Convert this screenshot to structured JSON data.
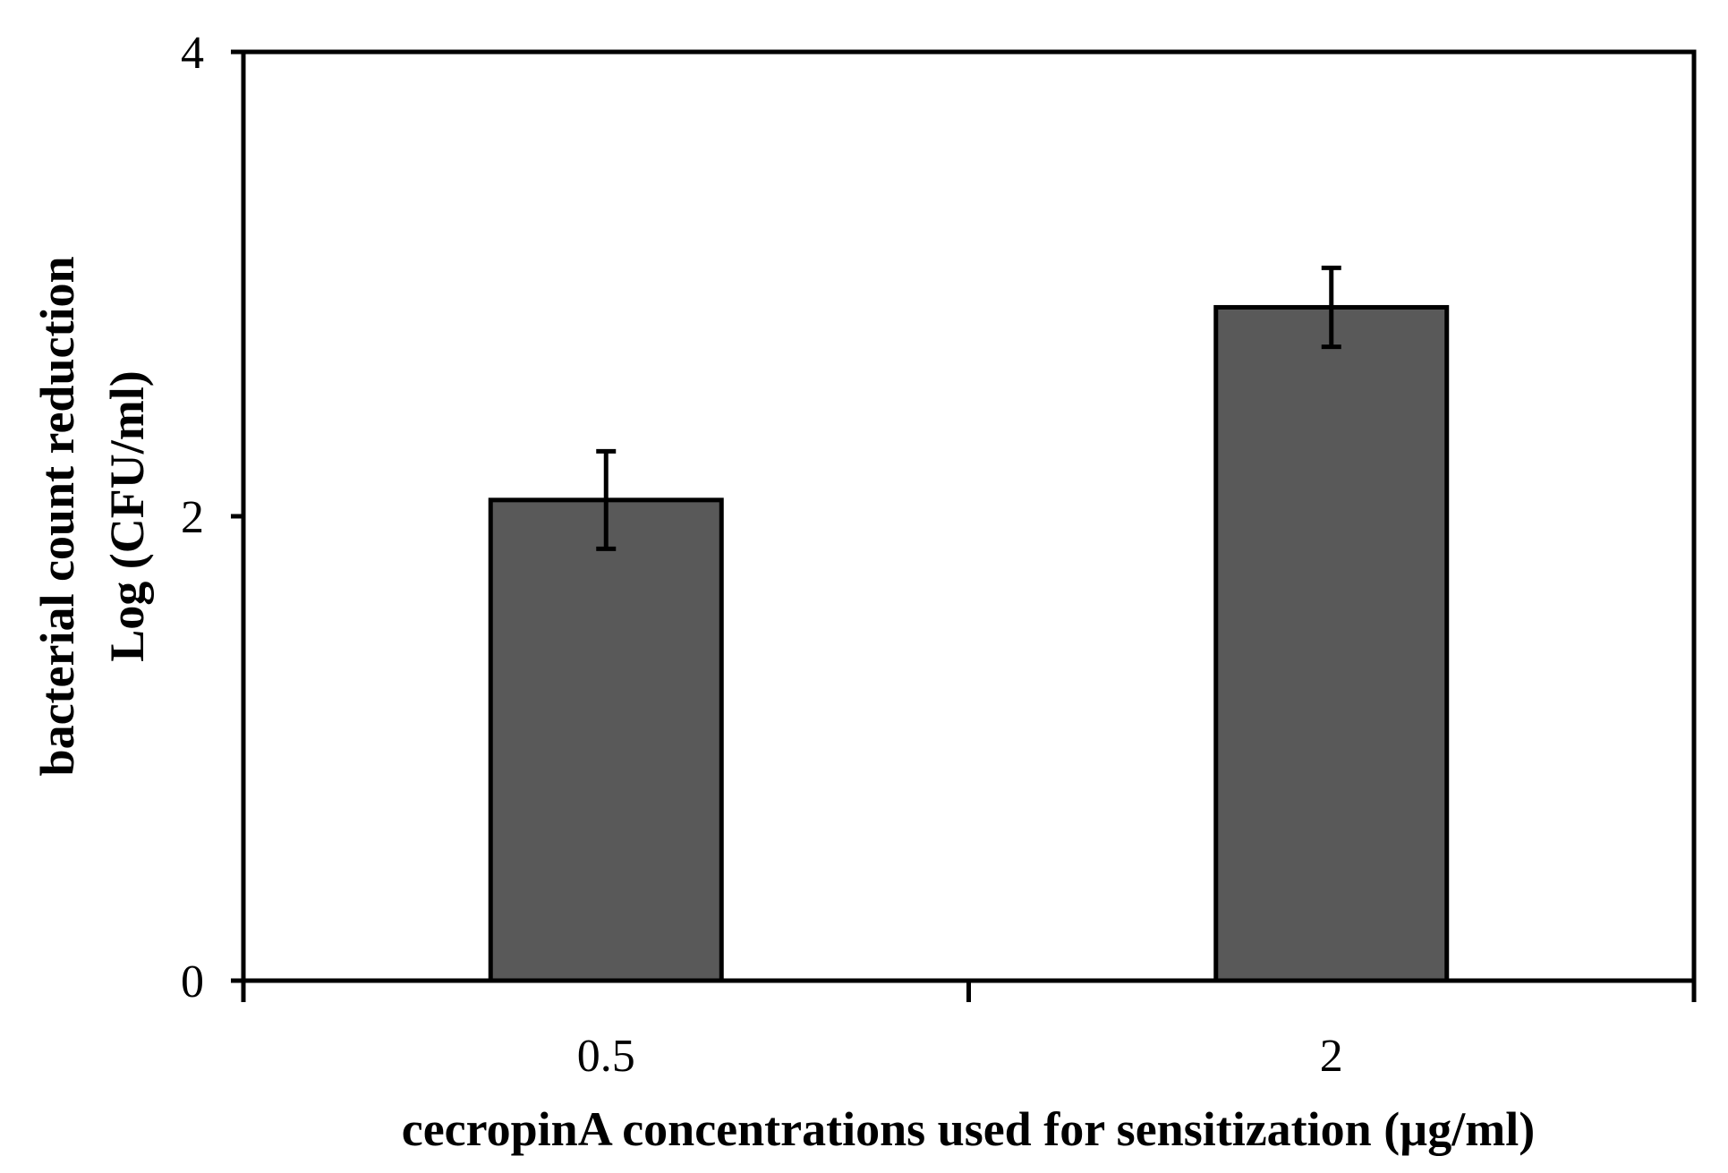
{
  "chart_data": {
    "type": "bar",
    "categories": [
      "0.5",
      "2"
    ],
    "series": [
      {
        "values": [
          2.07,
          2.9
        ],
        "errors": [
          0.21,
          0.17
        ]
      }
    ],
    "xlabel": "cecropinA concentrations used for sensitization (µg/ml)",
    "ylabel_lines": [
      "bacterial count reduction",
      "Log (CFU/ml)"
    ],
    "ylim": [
      0,
      4
    ],
    "yticks": [
      "0",
      "2",
      "4"
    ],
    "grid": false,
    "bar_color": "#595959",
    "edge_color": "#000000"
  }
}
